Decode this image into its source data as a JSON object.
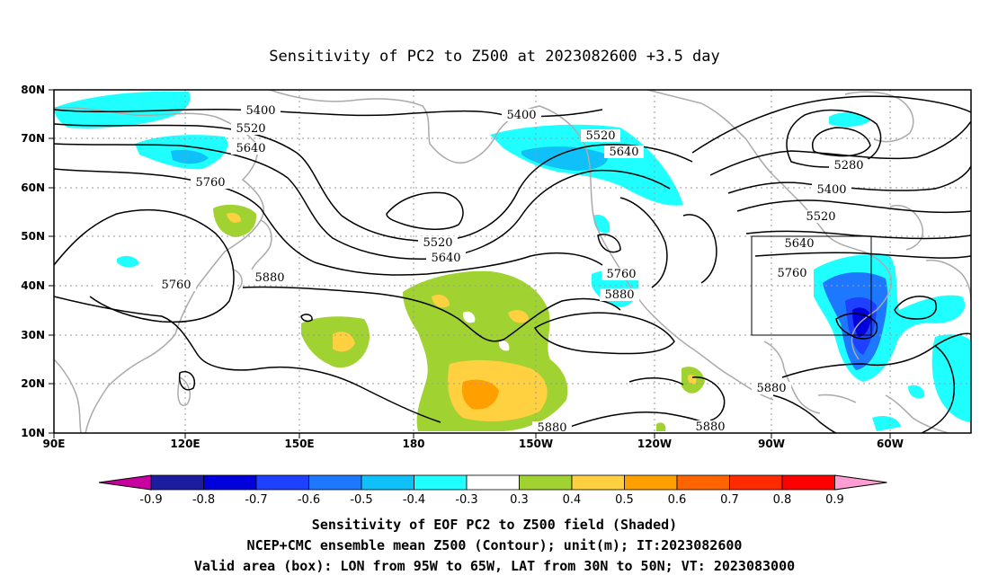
{
  "title": "Sensitivity of PC2 to Z500 at 2023082600 +3.5 day",
  "colors": {
    "grid": "#9a9a9a",
    "coast": "#aaaaaa",
    "contour": "#000000",
    "box": "#000000"
  },
  "map": {
    "lon_labels": [
      "90E",
      "120E",
      "150E",
      "180",
      "150W",
      "120W",
      "90W",
      "60W"
    ],
    "lat_labels": [
      "80N",
      "70N",
      "60N",
      "50N",
      "40N",
      "30N",
      "20N",
      "10N"
    ],
    "contour_labels": [
      "5400",
      "5520",
      "5640",
      "5760",
      "5880",
      "5280"
    ],
    "valid_box": {
      "lon_min": -95,
      "lon_max": -65,
      "lat_min": 30,
      "lat_max": 50
    }
  },
  "colorbar": {
    "labels": [
      "-0.9",
      "-0.8",
      "-0.7",
      "-0.6",
      "-0.5",
      "-0.4",
      "-0.3",
      "0.3",
      "0.4",
      "0.5",
      "0.6",
      "0.7",
      "0.8",
      "0.9"
    ],
    "colors": [
      "#c800a0",
      "#1c1ca0",
      "#0000dc",
      "#1e40ff",
      "#1e78ff",
      "#10c0f8",
      "#20ffff",
      "#ffffff",
      "#a0d232",
      "#ffd040",
      "#ffa000",
      "#ff6400",
      "#ff2a00",
      "#ff0000",
      "#ff9ed2"
    ]
  },
  "caption": {
    "line1": "Sensitivity of EOF PC2 to Z500 field (Shaded)",
    "line2": "NCEP+CMC ensemble mean Z500 (Contour); unit(m); IT:2023082600",
    "line3": "Valid area (box): LON from 95W to 65W, LAT from 30N to 50N; VT: 2023083000"
  }
}
